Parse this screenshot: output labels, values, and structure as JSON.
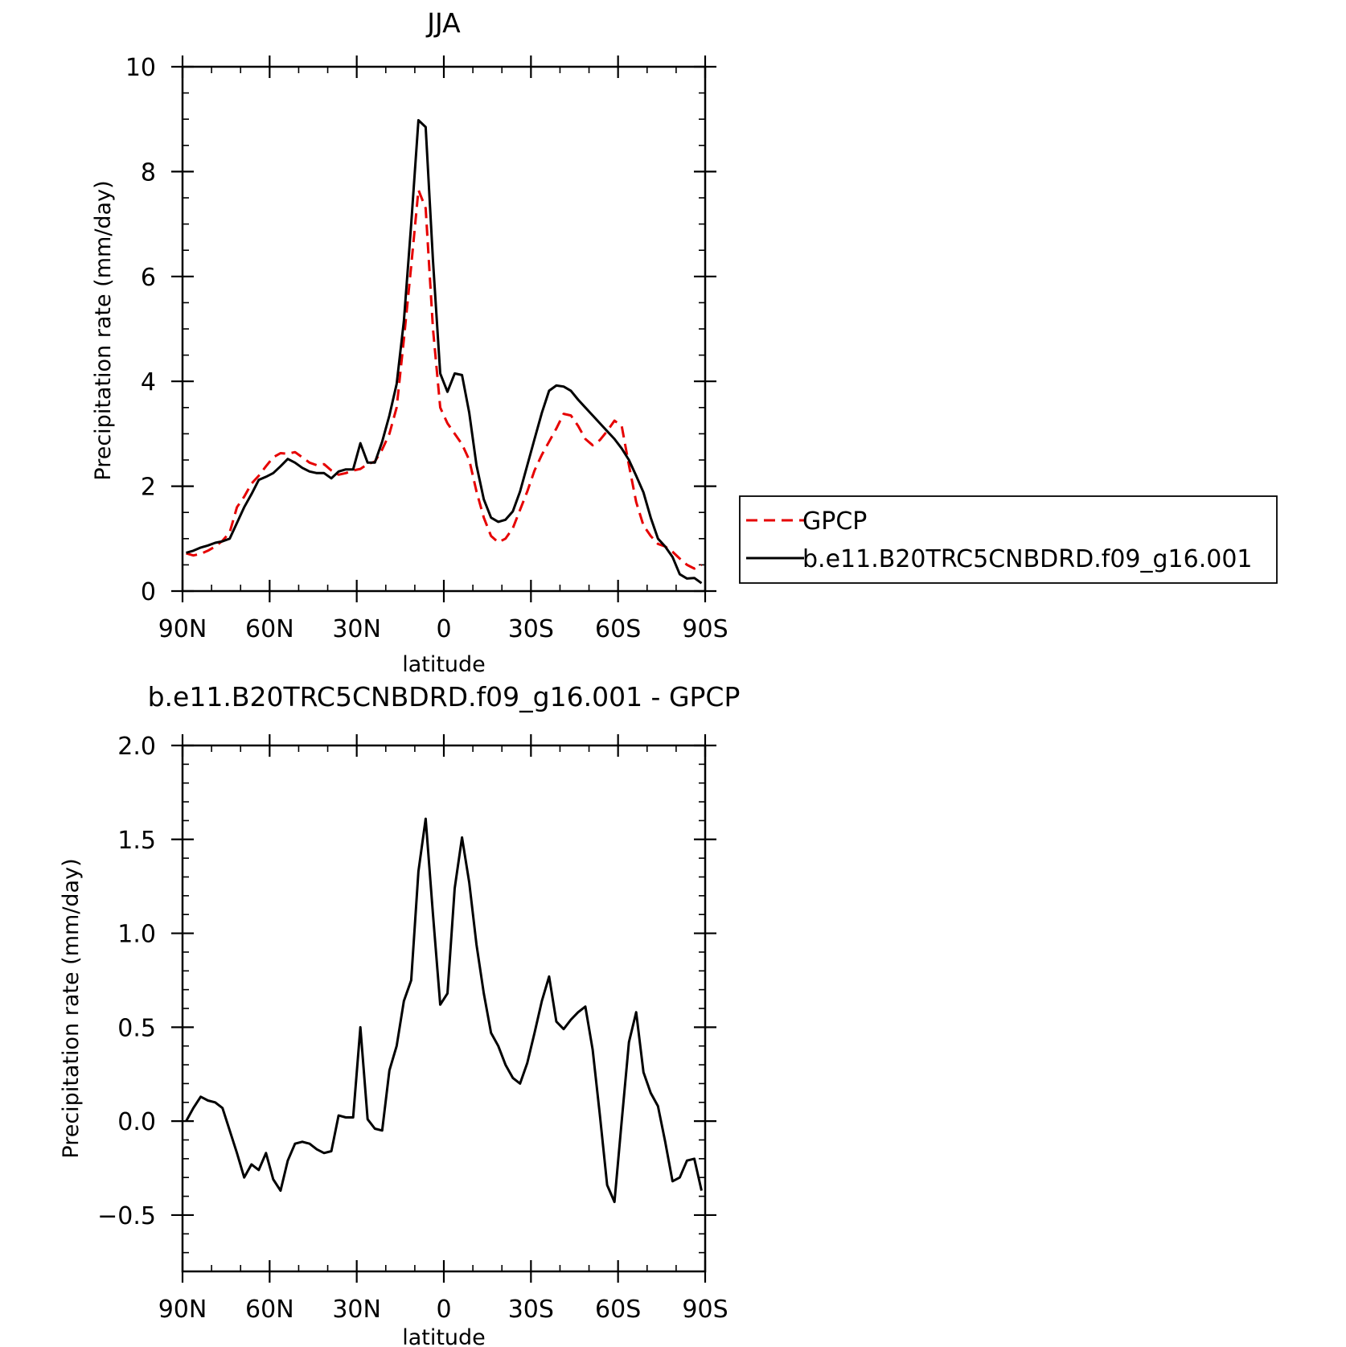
{
  "chart_data": [
    {
      "type": "line",
      "title": "JJA",
      "xlabel": "latitude",
      "ylabel": "Precipitation rate (mm/day)",
      "x_ticks": [
        {
          "value": 90,
          "label": "90N"
        },
        {
          "value": 60,
          "label": "60N"
        },
        {
          "value": 30,
          "label": "30N"
        },
        {
          "value": 0,
          "label": "0"
        },
        {
          "value": -30,
          "label": "30S"
        },
        {
          "value": -60,
          "label": "60S"
        },
        {
          "value": -90,
          "label": "90S"
        }
      ],
      "y_ticks": [
        {
          "value": 0,
          "label": "0"
        },
        {
          "value": 2,
          "label": "2"
        },
        {
          "value": 4,
          "label": "4"
        },
        {
          "value": 6,
          "label": "6"
        },
        {
          "value": 8,
          "label": "8"
        },
        {
          "value": 10,
          "label": "10"
        }
      ],
      "xlim": [
        90,
        -90
      ],
      "ylim": [
        0,
        10
      ],
      "legend": {
        "placement": "right"
      },
      "series": [
        {
          "name": "GPCP",
          "color": "#e60000",
          "dash": "dashed",
          "points": [
            [
              88.75,
              0.72
            ],
            [
              86.25,
              0.68
            ],
            [
              83.75,
              0.71
            ],
            [
              81.25,
              0.77
            ],
            [
              78.75,
              0.85
            ],
            [
              76.25,
              0.96
            ],
            [
              73.75,
              1.12
            ],
            [
              71.25,
              1.6
            ],
            [
              68.75,
              1.8
            ],
            [
              66.25,
              2.05
            ],
            [
              63.75,
              2.2
            ],
            [
              61.25,
              2.38
            ],
            [
              58.75,
              2.55
            ],
            [
              56.25,
              2.63
            ],
            [
              53.75,
              2.62
            ],
            [
              51.25,
              2.65
            ],
            [
              48.75,
              2.55
            ],
            [
              46.25,
              2.45
            ],
            [
              43.75,
              2.4
            ],
            [
              41.25,
              2.42
            ],
            [
              38.75,
              2.3
            ],
            [
              36.25,
              2.22
            ],
            [
              33.75,
              2.25
            ],
            [
              31.25,
              2.3
            ],
            [
              28.75,
              2.33
            ],
            [
              26.25,
              2.42
            ],
            [
              23.75,
              2.47
            ],
            [
              21.25,
              2.7
            ],
            [
              18.75,
              3.0
            ],
            [
              16.25,
              3.5
            ],
            [
              13.75,
              4.8
            ],
            [
              11.25,
              6.2
            ],
            [
              8.75,
              7.65
            ],
            [
              6.25,
              7.3
            ],
            [
              3.75,
              5.0
            ],
            [
              1.25,
              3.5
            ],
            [
              -1.25,
              3.2
            ],
            [
              -3.75,
              3.0
            ],
            [
              -6.25,
              2.8
            ],
            [
              -8.75,
              2.5
            ],
            [
              -11.25,
              1.9
            ],
            [
              -13.75,
              1.4
            ],
            [
              -16.25,
              1.05
            ],
            [
              -18.75,
              0.93
            ],
            [
              -21.25,
              1.0
            ],
            [
              -23.75,
              1.2
            ],
            [
              -26.25,
              1.55
            ],
            [
              -28.75,
              1.9
            ],
            [
              -31.25,
              2.3
            ],
            [
              -33.75,
              2.6
            ],
            [
              -36.25,
              2.85
            ],
            [
              -38.75,
              3.1
            ],
            [
              -41.25,
              3.38
            ],
            [
              -43.75,
              3.35
            ],
            [
              -46.25,
              3.15
            ],
            [
              -48.75,
              2.9
            ],
            [
              -51.25,
              2.78
            ],
            [
              -53.75,
              2.88
            ],
            [
              -56.25,
              3.05
            ],
            [
              -58.75,
              3.25
            ],
            [
              -61.25,
              3.15
            ],
            [
              -63.75,
              2.4
            ],
            [
              -66.25,
              1.7
            ],
            [
              -68.75,
              1.25
            ],
            [
              -71.25,
              1.05
            ],
            [
              -73.75,
              0.9
            ],
            [
              -76.25,
              0.85
            ],
            [
              -78.75,
              0.75
            ],
            [
              -81.25,
              0.62
            ],
            [
              -83.75,
              0.5
            ],
            [
              -86.25,
              0.43
            ],
            [
              -88.75,
              0.5
            ]
          ]
        },
        {
          "name": "b.e11.B20TRC5CNBDRD.f09_g16.001",
          "color": "#000000",
          "dash": "solid",
          "points": [
            [
              88.75,
              0.73
            ],
            [
              86.25,
              0.77
            ],
            [
              83.75,
              0.83
            ],
            [
              81.25,
              0.87
            ],
            [
              78.75,
              0.92
            ],
            [
              76.25,
              0.95
            ],
            [
              73.75,
              1.0
            ],
            [
              71.25,
              1.3
            ],
            [
              68.75,
              1.6
            ],
            [
              66.25,
              1.85
            ],
            [
              63.75,
              2.12
            ],
            [
              61.25,
              2.18
            ],
            [
              58.75,
              2.25
            ],
            [
              56.25,
              2.38
            ],
            [
              53.75,
              2.52
            ],
            [
              51.25,
              2.45
            ],
            [
              48.75,
              2.35
            ],
            [
              46.25,
              2.28
            ],
            [
              43.75,
              2.25
            ],
            [
              41.25,
              2.25
            ],
            [
              38.75,
              2.15
            ],
            [
              36.25,
              2.28
            ],
            [
              33.75,
              2.32
            ],
            [
              31.25,
              2.32
            ],
            [
              28.75,
              2.82
            ],
            [
              26.25,
              2.45
            ],
            [
              23.75,
              2.45
            ],
            [
              21.25,
              2.85
            ],
            [
              18.75,
              3.35
            ],
            [
              16.25,
              3.95
            ],
            [
              13.75,
              5.15
            ],
            [
              11.25,
              7.0
            ],
            [
              8.75,
              8.98
            ],
            [
              6.25,
              8.85
            ],
            [
              3.75,
              6.3
            ],
            [
              1.25,
              4.15
            ],
            [
              -1.25,
              3.8
            ],
            [
              -3.75,
              4.15
            ],
            [
              -6.25,
              4.12
            ],
            [
              -8.75,
              3.4
            ],
            [
              -11.25,
              2.4
            ],
            [
              -13.75,
              1.75
            ],
            [
              -16.25,
              1.4
            ],
            [
              -18.75,
              1.32
            ],
            [
              -21.25,
              1.36
            ],
            [
              -23.75,
              1.52
            ],
            [
              -26.25,
              1.9
            ],
            [
              -28.75,
              2.4
            ],
            [
              -31.25,
              2.9
            ],
            [
              -33.75,
              3.4
            ],
            [
              -36.25,
              3.82
            ],
            [
              -38.75,
              3.92
            ],
            [
              -41.25,
              3.9
            ],
            [
              -43.75,
              3.82
            ],
            [
              -46.25,
              3.65
            ],
            [
              -48.75,
              3.5
            ],
            [
              -51.25,
              3.35
            ],
            [
              -53.75,
              3.2
            ],
            [
              -56.25,
              3.05
            ],
            [
              -58.75,
              2.9
            ],
            [
              -61.25,
              2.72
            ],
            [
              -63.75,
              2.5
            ],
            [
              -66.25,
              2.2
            ],
            [
              -68.75,
              1.88
            ],
            [
              -71.25,
              1.4
            ],
            [
              -73.75,
              1.0
            ],
            [
              -76.25,
              0.85
            ],
            [
              -78.75,
              0.65
            ],
            [
              -81.25,
              0.32
            ],
            [
              -83.75,
              0.24
            ],
            [
              -86.25,
              0.25
            ],
            [
              -88.75,
              0.15
            ]
          ]
        }
      ]
    },
    {
      "type": "line",
      "title": "b.e11.B20TRC5CNBDRD.f09_g16.001 - GPCP",
      "xlabel": "latitude",
      "ylabel": "Precipitation rate (mm/day)",
      "x_ticks": [
        {
          "value": 90,
          "label": "90N"
        },
        {
          "value": 60,
          "label": "60N"
        },
        {
          "value": 30,
          "label": "30N"
        },
        {
          "value": 0,
          "label": "0"
        },
        {
          "value": -30,
          "label": "30S"
        },
        {
          "value": -60,
          "label": "60S"
        },
        {
          "value": -90,
          "label": "90S"
        }
      ],
      "y_ticks": [
        {
          "value": -0.5,
          "label": "−0.5"
        },
        {
          "value": 0.0,
          "label": "0.0"
        },
        {
          "value": 0.5,
          "label": "0.5"
        },
        {
          "value": 1.0,
          "label": "1.0"
        },
        {
          "value": 1.5,
          "label": "1.5"
        },
        {
          "value": 2.0,
          "label": "2.0"
        }
      ],
      "xlim": [
        90,
        -90
      ],
      "ylim": [
        -0.8,
        2.0
      ],
      "series": [
        {
          "color": "#000000",
          "dash": "solid",
          "points": [
            [
              88.75,
              0.0
            ],
            [
              86.25,
              0.07
            ],
            [
              83.75,
              0.13
            ],
            [
              81.25,
              0.11
            ],
            [
              78.75,
              0.1
            ],
            [
              76.25,
              0.07
            ],
            [
              73.75,
              -0.05
            ],
            [
              71.25,
              -0.17
            ],
            [
              68.75,
              -0.3
            ],
            [
              66.25,
              -0.23
            ],
            [
              63.75,
              -0.26
            ],
            [
              61.25,
              -0.17
            ],
            [
              58.75,
              -0.31
            ],
            [
              56.25,
              -0.37
            ],
            [
              53.75,
              -0.21
            ],
            [
              51.25,
              -0.12
            ],
            [
              48.75,
              -0.11
            ],
            [
              46.25,
              -0.12
            ],
            [
              43.75,
              -0.15
            ],
            [
              41.25,
              -0.17
            ],
            [
              38.75,
              -0.16
            ],
            [
              36.25,
              0.03
            ],
            [
              33.75,
              0.02
            ],
            [
              31.25,
              0.02
            ],
            [
              28.75,
              0.5
            ],
            [
              26.25,
              0.01
            ],
            [
              23.75,
              -0.04
            ],
            [
              21.25,
              -0.05
            ],
            [
              18.75,
              0.27
            ],
            [
              16.25,
              0.4
            ],
            [
              13.75,
              0.64
            ],
            [
              11.25,
              0.75
            ],
            [
              8.75,
              1.33
            ],
            [
              6.25,
              1.61
            ],
            [
              3.75,
              1.1
            ],
            [
              1.25,
              0.62
            ],
            [
              -1.25,
              0.68
            ],
            [
              -3.75,
              1.24
            ],
            [
              -6.25,
              1.51
            ],
            [
              -8.75,
              1.27
            ],
            [
              -11.25,
              0.94
            ],
            [
              -13.75,
              0.68
            ],
            [
              -16.25,
              0.47
            ],
            [
              -18.75,
              0.4
            ],
            [
              -21.25,
              0.3
            ],
            [
              -23.75,
              0.23
            ],
            [
              -26.25,
              0.2
            ],
            [
              -28.75,
              0.31
            ],
            [
              -31.25,
              0.47
            ],
            [
              -33.75,
              0.64
            ],
            [
              -36.25,
              0.77
            ],
            [
              -38.75,
              0.53
            ],
            [
              -41.25,
              0.49
            ],
            [
              -43.75,
              0.54
            ],
            [
              -46.25,
              0.58
            ],
            [
              -48.75,
              0.61
            ],
            [
              -51.25,
              0.38
            ],
            [
              -53.75,
              0.03
            ],
            [
              -56.25,
              -0.34
            ],
            [
              -58.75,
              -0.43
            ],
            [
              -61.25,
              0.0
            ],
            [
              -63.75,
              0.42
            ],
            [
              -66.25,
              0.58
            ],
            [
              -68.75,
              0.26
            ],
            [
              -71.25,
              0.15
            ],
            [
              -73.75,
              0.08
            ],
            [
              -76.25,
              -0.11
            ],
            [
              -78.75,
              -0.32
            ],
            [
              -81.25,
              -0.3
            ],
            [
              -83.75,
              -0.21
            ],
            [
              -86.25,
              -0.2
            ],
            [
              -88.75,
              -0.37
            ]
          ]
        }
      ]
    }
  ]
}
